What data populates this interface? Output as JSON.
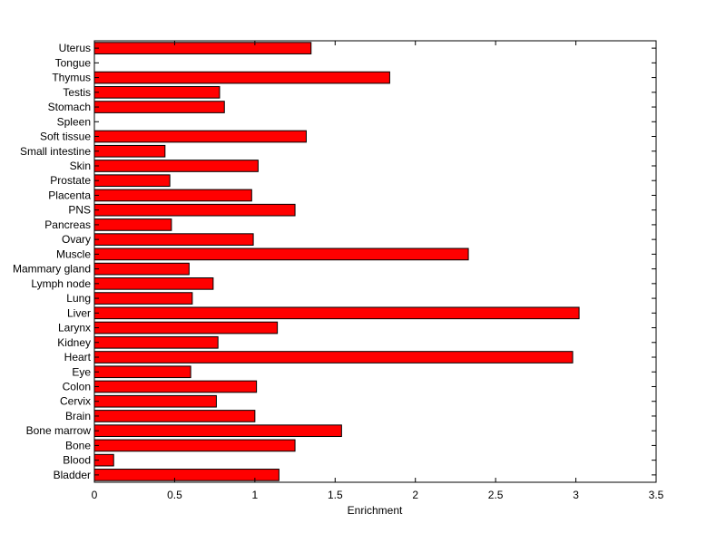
{
  "chart_data": {
    "type": "bar",
    "orientation": "horizontal",
    "title": "",
    "xlabel": "Enrichment",
    "ylabel": "",
    "xlim": [
      0,
      3.5
    ],
    "xticks": [
      "0",
      "0.5",
      "1",
      "1.5",
      "2",
      "2.5",
      "3",
      "3.5"
    ],
    "grid": false,
    "legend": "none",
    "bar_color": "#ff0000",
    "categories": [
      "Uterus",
      "Tongue",
      "Thymus",
      "Testis",
      "Stomach",
      "Spleen",
      "Soft tissue",
      "Small intestine",
      "Skin",
      "Prostate",
      "Placenta",
      "PNS",
      "Pancreas",
      "Ovary",
      "Muscle",
      "Mammary gland",
      "Lymph node",
      "Lung",
      "Liver",
      "Larynx",
      "Kidney",
      "Heart",
      "Eye",
      "Colon",
      "Cervix",
      "Brain",
      "Bone marrow",
      "Bone",
      "Blood",
      "Bladder"
    ],
    "values": [
      1.35,
      0,
      1.84,
      0.78,
      0.81,
      0,
      1.32,
      0.44,
      1.02,
      0.47,
      0.98,
      1.25,
      0.48,
      0.99,
      2.33,
      0.59,
      0.74,
      0.61,
      3.02,
      1.14,
      0.77,
      2.98,
      0.6,
      1.01,
      0.76,
      1.0,
      1.54,
      1.25,
      0.12,
      1.15
    ]
  }
}
